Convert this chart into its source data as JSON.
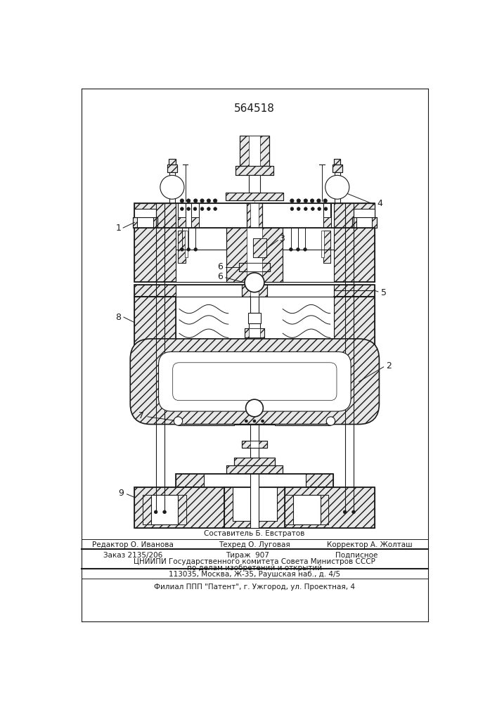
{
  "title_number": "564518",
  "line_color": "#1a1a1a",
  "label_color": "#1a1a1a",
  "footer": {
    "line1": "Составитель Б. Евстратов",
    "line2_left": "Редактор О. Иванова",
    "line2_mid": "Техред О. Луговая",
    "line2_right": "Корректор А. Жолташ",
    "line3_left": "Заказ 2135/206",
    "line3_mid": "Тираж  907",
    "line3_right": "Подписное",
    "line4": "ЦНИИПИ Государственного комитета Совета Министров СССР",
    "line5": "по делам изобретений и открытий",
    "line6": "113035, Москва, Ж-35, Раушская наб., д. 4/5",
    "line7": "Филиал ППП \"Патент\", г. Ужгород, ул. Проектная, 4"
  }
}
